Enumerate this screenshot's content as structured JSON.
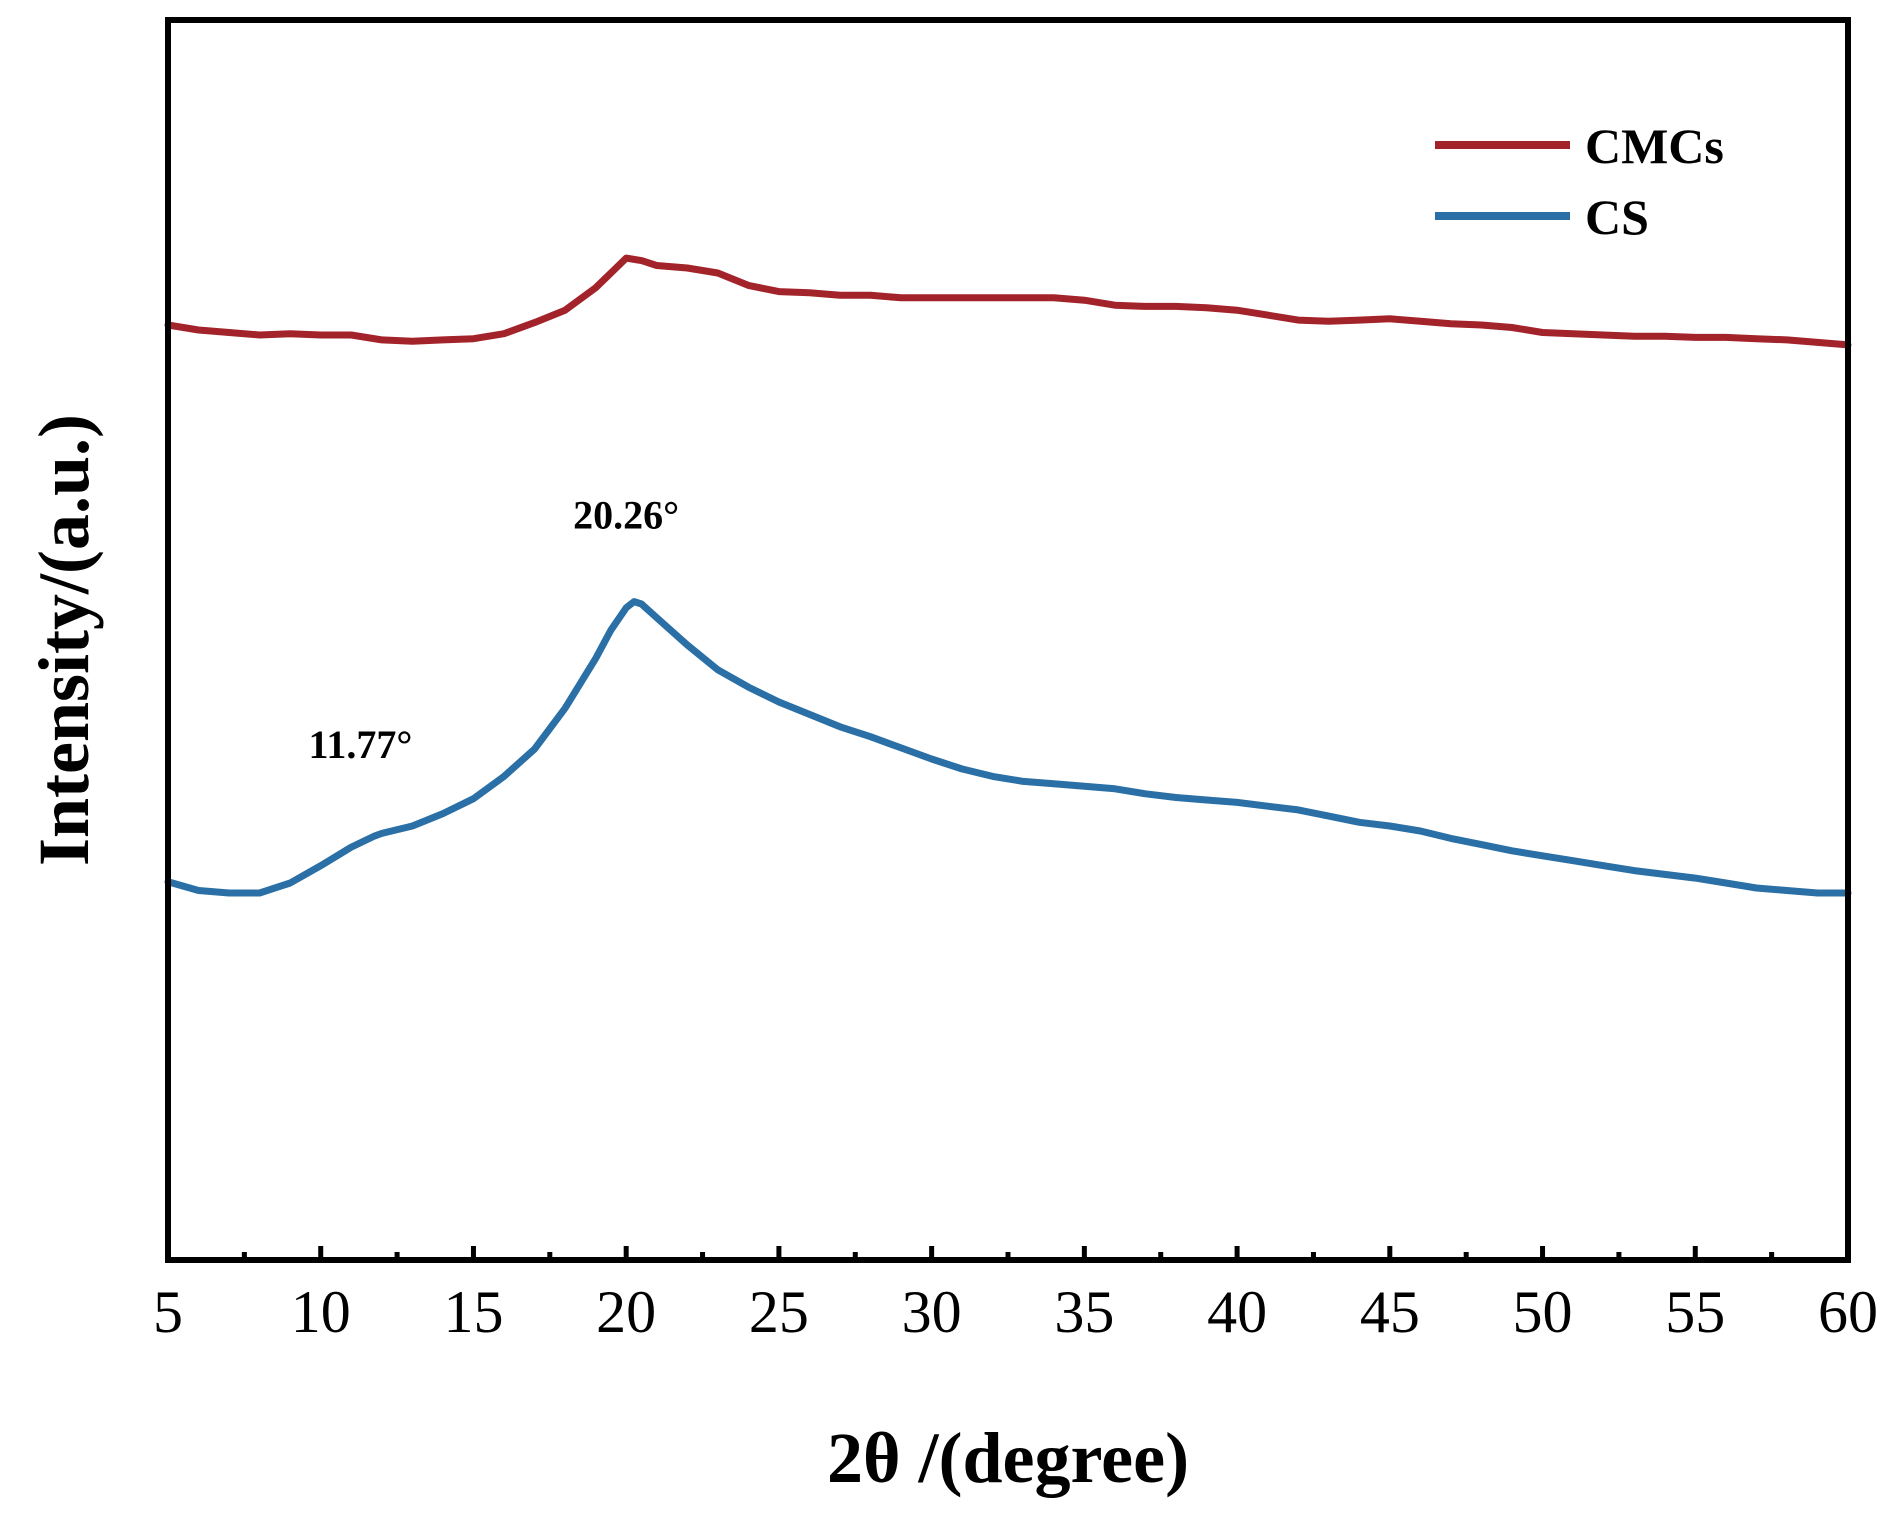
{
  "chart_data": {
    "type": "line",
    "xlabel": "2θ /(degree)",
    "ylabel": "Intensity/(a.u.)",
    "xlim": [
      5,
      60
    ],
    "x_ticks": [
      5,
      10,
      15,
      20,
      25,
      30,
      35,
      40,
      45,
      50,
      55,
      60
    ],
    "x_tick_labels": [
      "5",
      "10",
      "15",
      "20",
      "25",
      "30",
      "35",
      "40",
      "45",
      "50",
      "55",
      "60"
    ],
    "y_ticks_shown": false,
    "ylim": [
      0,
      100
    ],
    "grid": false,
    "legend_position": "top-right",
    "series": [
      {
        "name": "CMCs",
        "color": "#a3232a",
        "x": [
          5,
          6,
          7,
          8,
          9,
          10,
          11,
          12,
          13,
          14,
          15,
          16,
          17,
          18,
          19,
          19.5,
          20,
          20.5,
          21,
          22,
          23,
          24,
          25,
          26,
          27,
          28,
          29,
          30,
          31,
          32,
          33,
          34,
          35,
          36,
          37,
          38,
          39,
          40,
          41,
          42,
          43,
          44,
          45,
          46,
          47,
          48,
          49,
          50,
          51,
          52,
          53,
          54,
          55,
          56,
          57,
          58,
          59,
          60
        ],
        "values": [
          75.4,
          75.0,
          74.8,
          74.6,
          74.7,
          74.6,
          74.6,
          74.2,
          74.1,
          74.2,
          74.3,
          74.7,
          75.6,
          76.6,
          78.4,
          79.6,
          80.8,
          80.6,
          80.2,
          80.0,
          79.6,
          78.6,
          78.1,
          78.0,
          77.8,
          77.8,
          77.6,
          77.6,
          77.6,
          77.6,
          77.6,
          77.6,
          77.4,
          77.0,
          76.9,
          76.9,
          76.8,
          76.6,
          76.2,
          75.8,
          75.7,
          75.8,
          75.9,
          75.7,
          75.5,
          75.4,
          75.2,
          74.8,
          74.7,
          74.6,
          74.5,
          74.5,
          74.4,
          74.4,
          74.3,
          74.2,
          74.0,
          73.8
        ]
      },
      {
        "name": "CS",
        "color": "#2a6fa5",
        "x": [
          5,
          6,
          7,
          8,
          9,
          10,
          11,
          11.77,
          12,
          13,
          14,
          15,
          16,
          17,
          18,
          19,
          19.5,
          20,
          20.26,
          20.5,
          21,
          22,
          23,
          24,
          25,
          26,
          27,
          28,
          29,
          30,
          31,
          32,
          33,
          34,
          35,
          36,
          37,
          38,
          39,
          40,
          41,
          42,
          43,
          44,
          45,
          46,
          47,
          48,
          49,
          50,
          51,
          52,
          53,
          54,
          55,
          56,
          57,
          58,
          59,
          60
        ],
        "values": [
          30.5,
          29.8,
          29.6,
          29.6,
          30.4,
          31.8,
          33.3,
          34.2,
          34.4,
          35.0,
          36.0,
          37.2,
          39.0,
          41.2,
          44.5,
          48.5,
          50.8,
          52.6,
          53.1,
          52.9,
          51.8,
          49.6,
          47.6,
          46.2,
          45.0,
          44.0,
          43.0,
          42.2,
          41.3,
          40.4,
          39.6,
          39.0,
          38.6,
          38.4,
          38.2,
          38.0,
          37.6,
          37.3,
          37.1,
          36.9,
          36.6,
          36.3,
          35.8,
          35.3,
          35.0,
          34.6,
          34.0,
          33.5,
          33.0,
          32.6,
          32.2,
          31.8,
          31.4,
          31.1,
          30.8,
          30.4,
          30.0,
          29.8,
          29.6,
          29.6
        ]
      }
    ],
    "annotations": [
      {
        "text": "11.77°",
        "x": 11.3,
        "y": 40.5
      },
      {
        "text": "20.26°",
        "x": 20.0,
        "y": 59.0
      }
    ]
  }
}
